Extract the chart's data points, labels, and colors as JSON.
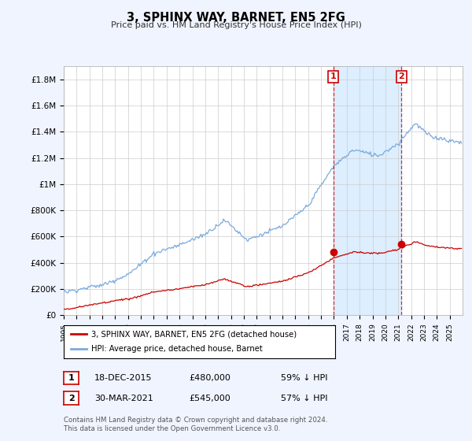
{
  "title": "3, SPHINX WAY, BARNET, EN5 2FG",
  "subtitle": "Price paid vs. HM Land Registry's House Price Index (HPI)",
  "ylabel_ticks": [
    "£0",
    "£200K",
    "£400K",
    "£600K",
    "£800K",
    "£1M",
    "£1.2M",
    "£1.4M",
    "£1.6M",
    "£1.8M"
  ],
  "ytick_vals": [
    0,
    200000,
    400000,
    600000,
    800000,
    1000000,
    1200000,
    1400000,
    1600000,
    1800000
  ],
  "ylim": [
    0,
    1900000
  ],
  "xlim_start": 1995.0,
  "xlim_end": 2026.0,
  "hpi_color": "#7aaadd",
  "price_color": "#cc0000",
  "marker1_x": 2015.96,
  "marker2_x": 2021.25,
  "marker1_price": 480000,
  "marker2_price": 545000,
  "marker1_date": "18-DEC-2015",
  "marker2_date": "30-MAR-2021",
  "marker1_pct": "59%",
  "marker2_pct": "57%",
  "legend_label_price": "3, SPHINX WAY, BARNET, EN5 2FG (detached house)",
  "legend_label_hpi": "HPI: Average price, detached house, Barnet",
  "footnote": "Contains HM Land Registry data © Crown copyright and database right 2024.\nThis data is licensed under the Open Government Licence v3.0.",
  "background_color": "#f0f4ff",
  "shade_color": "#ddeeff",
  "plot_bg": "#ffffff",
  "grid_color": "#cccccc"
}
